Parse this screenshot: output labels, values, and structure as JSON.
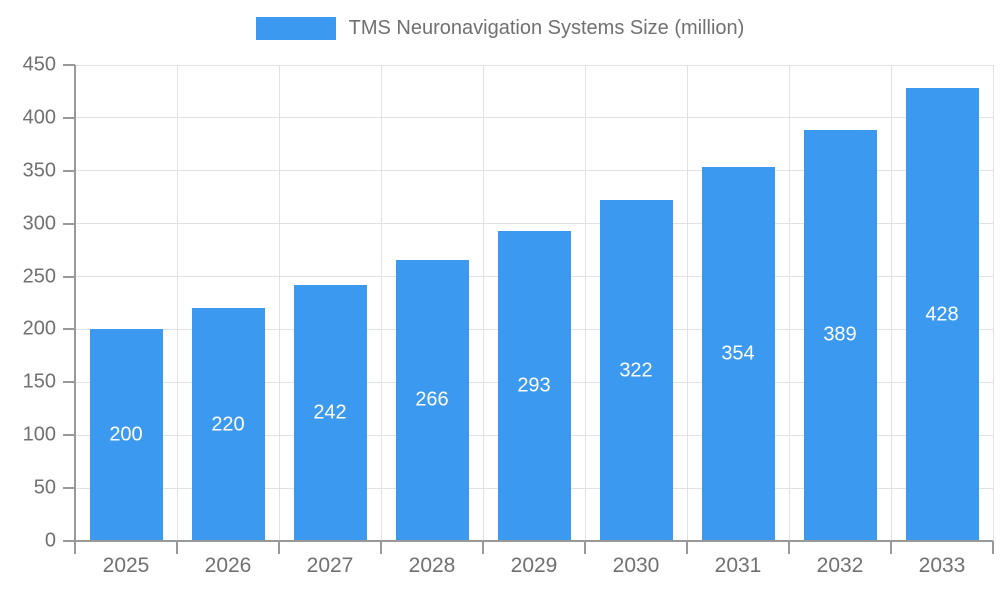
{
  "legend": {
    "label": "TMS Neuronavigation Systems Size (million)"
  },
  "colors": {
    "bar": "#3c99f0",
    "axis_line": "#999999",
    "grid_line": "#e2e2e2",
    "tick_text": "#707070",
    "value_label": "#ffffff",
    "background": "#ffffff"
  },
  "chart_data": {
    "type": "bar",
    "title": "TMS Neuronavigation Systems Size (million)",
    "categories": [
      "2025",
      "2026",
      "2027",
      "2028",
      "2029",
      "2030",
      "2031",
      "2032",
      "2033"
    ],
    "values": [
      200,
      220,
      242,
      266,
      293,
      322,
      354,
      389,
      428
    ],
    "xlabel": "",
    "ylabel": "",
    "ylim": [
      0,
      450
    ],
    "ytick_step": 50,
    "grid": true,
    "legend_position": "top",
    "value_labels": "inside-center"
  }
}
